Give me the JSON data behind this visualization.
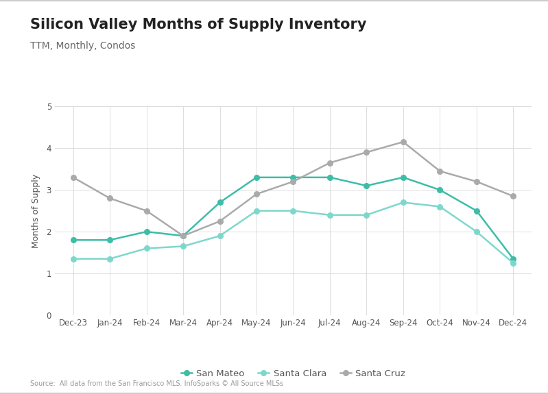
{
  "title": "Silicon Valley Months of Supply Inventory",
  "subtitle": "TTM, Monthly, Condos",
  "ylabel": "Months of Supply",
  "source": "Source:  All data from the San Francisco MLS. InfoSparks © All Source MLSs",
  "x_labels": [
    "Dec-23",
    "Jan-24",
    "Feb-24",
    "Mar-24",
    "Apr-24",
    "May-24",
    "Jun-24",
    "Jul-24",
    "Aug-24",
    "Sep-24",
    "Oct-24",
    "Nov-24",
    "Dec-24"
  ],
  "san_mateo": [
    1.8,
    1.8,
    2.0,
    1.9,
    2.7,
    3.3,
    3.3,
    3.3,
    3.1,
    3.3,
    3.0,
    2.5,
    1.35
  ],
  "santa_clara": [
    1.35,
    1.35,
    1.6,
    1.65,
    1.9,
    2.5,
    2.5,
    2.4,
    2.4,
    2.7,
    2.6,
    2.0,
    1.25
  ],
  "santa_cruz": [
    3.3,
    2.8,
    2.5,
    1.9,
    2.25,
    2.9,
    3.2,
    3.65,
    3.9,
    4.15,
    3.45,
    3.2,
    2.85
  ],
  "color_san_mateo": "#3dbda7",
  "color_santa_clara": "#7dd8cc",
  "color_santa_cruz": "#aaaaaa",
  "ylim": [
    0,
    5
  ],
  "yticks": [
    0,
    1,
    2,
    3,
    4,
    5
  ],
  "bg_color": "#ffffff",
  "grid_color": "#dddddd",
  "title_fontsize": 15,
  "subtitle_fontsize": 10,
  "axis_label_fontsize": 9,
  "tick_fontsize": 8.5,
  "legend_fontsize": 9.5,
  "source_fontsize": 7
}
